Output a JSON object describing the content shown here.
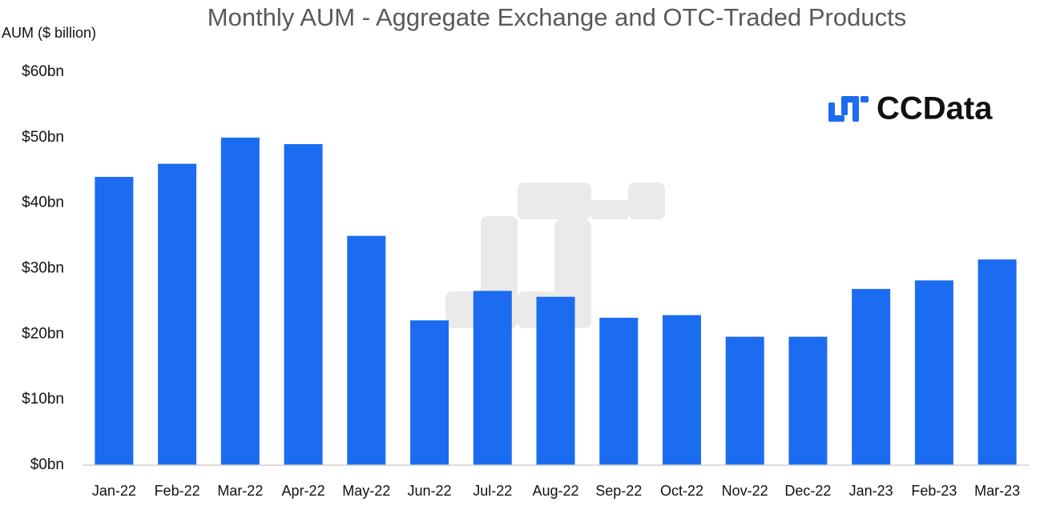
{
  "chart_data": {
    "type": "bar",
    "title": "Monthly AUM - Aggregate Exchange and OTC-Traded Products",
    "y_label": "AUM ($ billion)",
    "logo": "CCData",
    "categories": [
      "Jan-22",
      "Feb-22",
      "Mar-22",
      "Apr-22",
      "May-22",
      "Jun-22",
      "Jul-22",
      "Aug-22",
      "Sep-22",
      "Oct-22",
      "Nov-22",
      "Dec-22",
      "Jan-23",
      "Feb-23",
      "Mar-23"
    ],
    "values": [
      44,
      46,
      50,
      49,
      35,
      22.1,
      26.6,
      25.7,
      22.5,
      22.9,
      19.6,
      19.6,
      26.9,
      28.2,
      31.4
    ],
    "color": "#1b6cf0",
    "ylim": [
      0,
      60
    ],
    "yticks": [
      {
        "value": 0,
        "label": "$0bn"
      },
      {
        "value": 10,
        "label": "$10bn"
      },
      {
        "value": 20,
        "label": "$20bn"
      },
      {
        "value": 30,
        "label": "$30bn"
      },
      {
        "value": 40,
        "label": "$40bn"
      },
      {
        "value": 50,
        "label": "$50bn"
      },
      {
        "value": 60,
        "label": "$60bn"
      }
    ],
    "grid": false
  }
}
